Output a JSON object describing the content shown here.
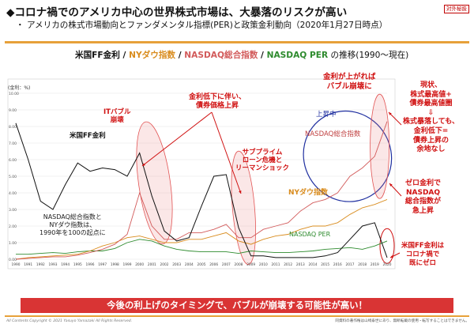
{
  "header": {
    "title": "◆コロナ禍でのアメリカ中心の世界株式市場は、大暴落のリスクが高い",
    "subtitle": "・ アメリカの株式市場動向とファンダメンタル指標(PER)と政策金利動向（2020年1月27日時点）",
    "tag": "対外秘扱"
  },
  "legend": {
    "ff": "米国FF金利",
    "sep1": " / ",
    "ny": "NYダウ指数",
    "sep2": " / ",
    "nasdaq": "NASDAQ総合指数",
    "sep3": " / ",
    "per": "NASDAQ PER",
    "suffix": " の推移(1990～現在)"
  },
  "colors": {
    "ff": "#111111",
    "ny": "#d98c1e",
    "nasdaq": "#d25a5a",
    "per": "#2e8b2e",
    "accent": "#d01010",
    "ellipse_red": "#e25555",
    "ellipse_blue": "#2030a0"
  },
  "chart_data": {
    "type": "line",
    "y_left_label": "(金利：%)",
    "x": [
      1990,
      1991,
      1992,
      1993,
      1994,
      1995,
      1996,
      1997,
      1998,
      1999,
      2000,
      2001,
      2002,
      2003,
      2004,
      2005,
      2006,
      2007,
      2008,
      2009,
      2010,
      2011,
      2012,
      2013,
      2014,
      2015,
      2016,
      2017,
      2018,
      2019,
      2020
    ],
    "x_ticks": [
      "1990",
      "1991",
      "1992",
      "1993",
      "1994",
      "1995",
      "1996",
      "1997",
      "1998",
      "1999",
      "2000",
      "2001",
      "2002",
      "2003",
      "2004",
      "2005",
      "2006",
      "2007",
      "2008",
      "2009",
      "2010",
      "2011",
      "2012",
      "2013",
      "2014",
      "2015",
      "2016",
      "2017",
      "2018",
      "2019",
      "2020"
    ],
    "y_left_ticks": [
      "10.00",
      "9.00",
      "8.00",
      "7.00",
      "6.00",
      "5.00",
      "4.00",
      "3.00",
      "2.00",
      "1.00",
      "0.00"
    ],
    "series": [
      {
        "name": "米国FF金利",
        "values": [
          8.2,
          6.0,
          3.5,
          3.0,
          4.5,
          5.8,
          5.3,
          5.5,
          5.4,
          5.0,
          6.4,
          3.8,
          1.7,
          1.1,
          1.3,
          3.2,
          5.0,
          5.1,
          1.9,
          0.2,
          0.2,
          0.1,
          0.1,
          0.1,
          0.1,
          0.2,
          0.4,
          1.2,
          2.0,
          2.2,
          0.1
        ]
      },
      {
        "name": "NYダウ指数",
        "values": [
          0.0,
          0.1,
          0.15,
          0.2,
          0.25,
          0.3,
          0.5,
          0.8,
          1.0,
          1.3,
          1.4,
          1.2,
          1.0,
          1.0,
          1.2,
          1.2,
          1.4,
          1.6,
          1.1,
          0.9,
          1.2,
          1.4,
          1.5,
          1.8,
          2.0,
          2.0,
          2.2,
          2.7,
          3.1,
          3.3,
          3.6
        ]
      },
      {
        "name": "NASDAQ総合指数",
        "values": [
          0.0,
          0.05,
          0.1,
          0.15,
          0.15,
          0.25,
          0.4,
          0.6,
          0.9,
          1.5,
          4.0,
          2.0,
          1.2,
          1.2,
          1.6,
          1.6,
          1.8,
          2.1,
          1.3,
          1.3,
          1.8,
          2.0,
          2.2,
          2.9,
          3.4,
          3.6,
          4.0,
          5.0,
          5.5,
          6.2,
          8.3
        ]
      },
      {
        "name": "NASDAQ PER",
        "values": [
          0.3,
          0.3,
          0.35,
          0.4,
          0.35,
          0.45,
          0.5,
          0.5,
          0.65,
          1.0,
          1.2,
          1.1,
          0.8,
          0.6,
          0.5,
          0.45,
          0.45,
          0.45,
          0.35,
          0.5,
          0.45,
          0.4,
          0.4,
          0.45,
          0.5,
          0.6,
          0.65,
          0.7,
          0.6,
          0.8,
          1.1
        ]
      }
    ]
  },
  "annotations": {
    "ff_label": "米国FF金利",
    "base_note": "NASDAQ総合指数と\nNYダウ指数は、\n1990年を100の起点に",
    "it_bubble": "ITバブル\n崩壊",
    "rate_cut": "金利低下に伴い、\n債券価格上昇",
    "subprime": "サブプライム\nローン危機と\nリーマンショック",
    "rate_up": "金利が上がれば\nバブル崩壊に",
    "rising": "上昇中",
    "record_high": "現状、\n株式最高値+\n債券最高値圏\n⇩\n株式暴落しても、\n金利低下=\n債券上昇の\n余地なし",
    "zero_rate": "ゼロ金利で\nNASDAQ\n総合指数が\n急上昇",
    "ff_zero": "米国FF金利は\nコロナ禍で\n既にゼロ",
    "nasdaq_label": "NASDAQ総合指数",
    "ny_label": "NYダウ指数",
    "per_label": "NASDAQ PER"
  },
  "banner": "今後の利上げのタイミングで、バブルが崩壊する可能性が高い！",
  "footer": {
    "left": "All Contents Copyright © 2021 Yasuyo Yamazaki All Rights Reserved.",
    "right": "同資料の著作権は山崎泰世にあり、無断転載の使用・転写することはできません。"
  }
}
